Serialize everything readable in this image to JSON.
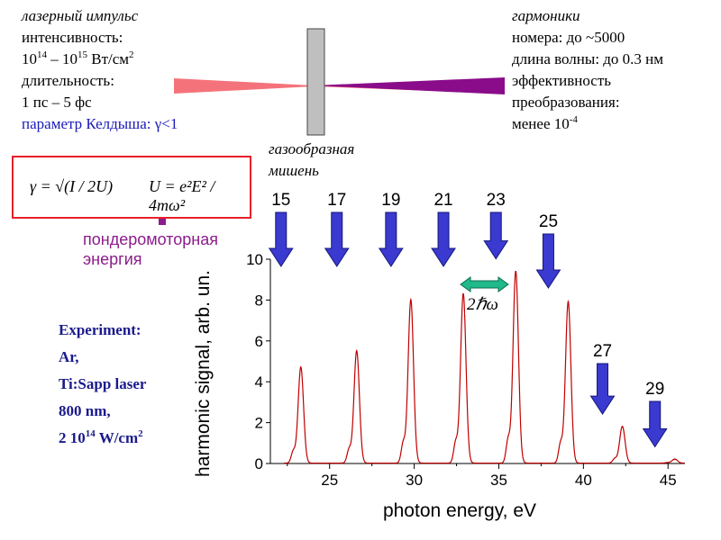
{
  "laser": {
    "title": "лазерный импульс",
    "intensity_label": "интенсивность:",
    "intensity_base_1": "10",
    "intensity_exp_1": "14",
    "intensity_dash": " – ",
    "intensity_base_2": "10",
    "intensity_exp_2": "15",
    "intensity_unit": " Вт/см",
    "intensity_unit_exp": "2",
    "duration_label": "длительность:",
    "duration_value": "1 пс – 5 фс",
    "keldysh": "параметр Келдыша: γ<1"
  },
  "harmonics": {
    "title": "гармоники",
    "numbers": "номера: до ~5000",
    "wavelength": "длина волны: до 0.3 нм",
    "efficiency_1": "эффективность",
    "efficiency_2": "преобразования:",
    "efficiency_value_base": "менее 10",
    "efficiency_value_exp": "-4"
  },
  "target": {
    "line1": "газообразная",
    "line2": "мишень"
  },
  "formulas": {
    "gamma": "γ = √(I / 2U)",
    "U": "U = e²E² / 4mω²"
  },
  "ponderomotive": {
    "line1": "пондеромоторная",
    "line2": "энергия"
  },
  "experiment": {
    "line1": "Experiment:",
    "line2": "Ar,",
    "line3": "Ti:Sapp laser",
    "line4": "800 nm,",
    "line5_base": "2 10",
    "line5_exp": "14",
    "line5_unit": " W/cm",
    "line5_unit_exp": "2"
  },
  "spacing_label": "2ℏω",
  "colors": {
    "laser_beam": "#f4737a",
    "harmonic_beam": "#8a0c8a",
    "target": "#bfbfbf",
    "arrow_fill": "#3a3ad0",
    "arrow_edge": "#15157a",
    "spectrum": "#c00000",
    "formula_border": "#e8202a",
    "spacing_arrow": "#1fb98a"
  },
  "chart_data": {
    "type": "line",
    "xlabel": "photon energy, eV",
    "ylabel": "harmonic signal, arb. un.",
    "xlim": [
      21.5,
      46
    ],
    "ylim": [
      0,
      10
    ],
    "xticks": [
      25,
      30,
      35,
      40,
      45
    ],
    "yticks": [
      0,
      2,
      4,
      6,
      8,
      10
    ],
    "grid": false,
    "peaks": [
      {
        "order": "15",
        "energy": 23.3,
        "height": 4.7
      },
      {
        "order": "17",
        "energy": 26.6,
        "height": 5.5
      },
      {
        "order": "19",
        "energy": 29.8,
        "height": 8.0
      },
      {
        "order": "21",
        "energy": 32.9,
        "height": 8.3
      },
      {
        "order": "23",
        "energy": 36.0,
        "height": 9.4
      },
      {
        "order": "25",
        "energy": 39.1,
        "height": 7.9
      },
      {
        "order": "27",
        "energy": 42.3,
        "height": 1.8
      },
      {
        "order": "29",
        "energy": 45.4,
        "height": 0.2
      }
    ]
  }
}
